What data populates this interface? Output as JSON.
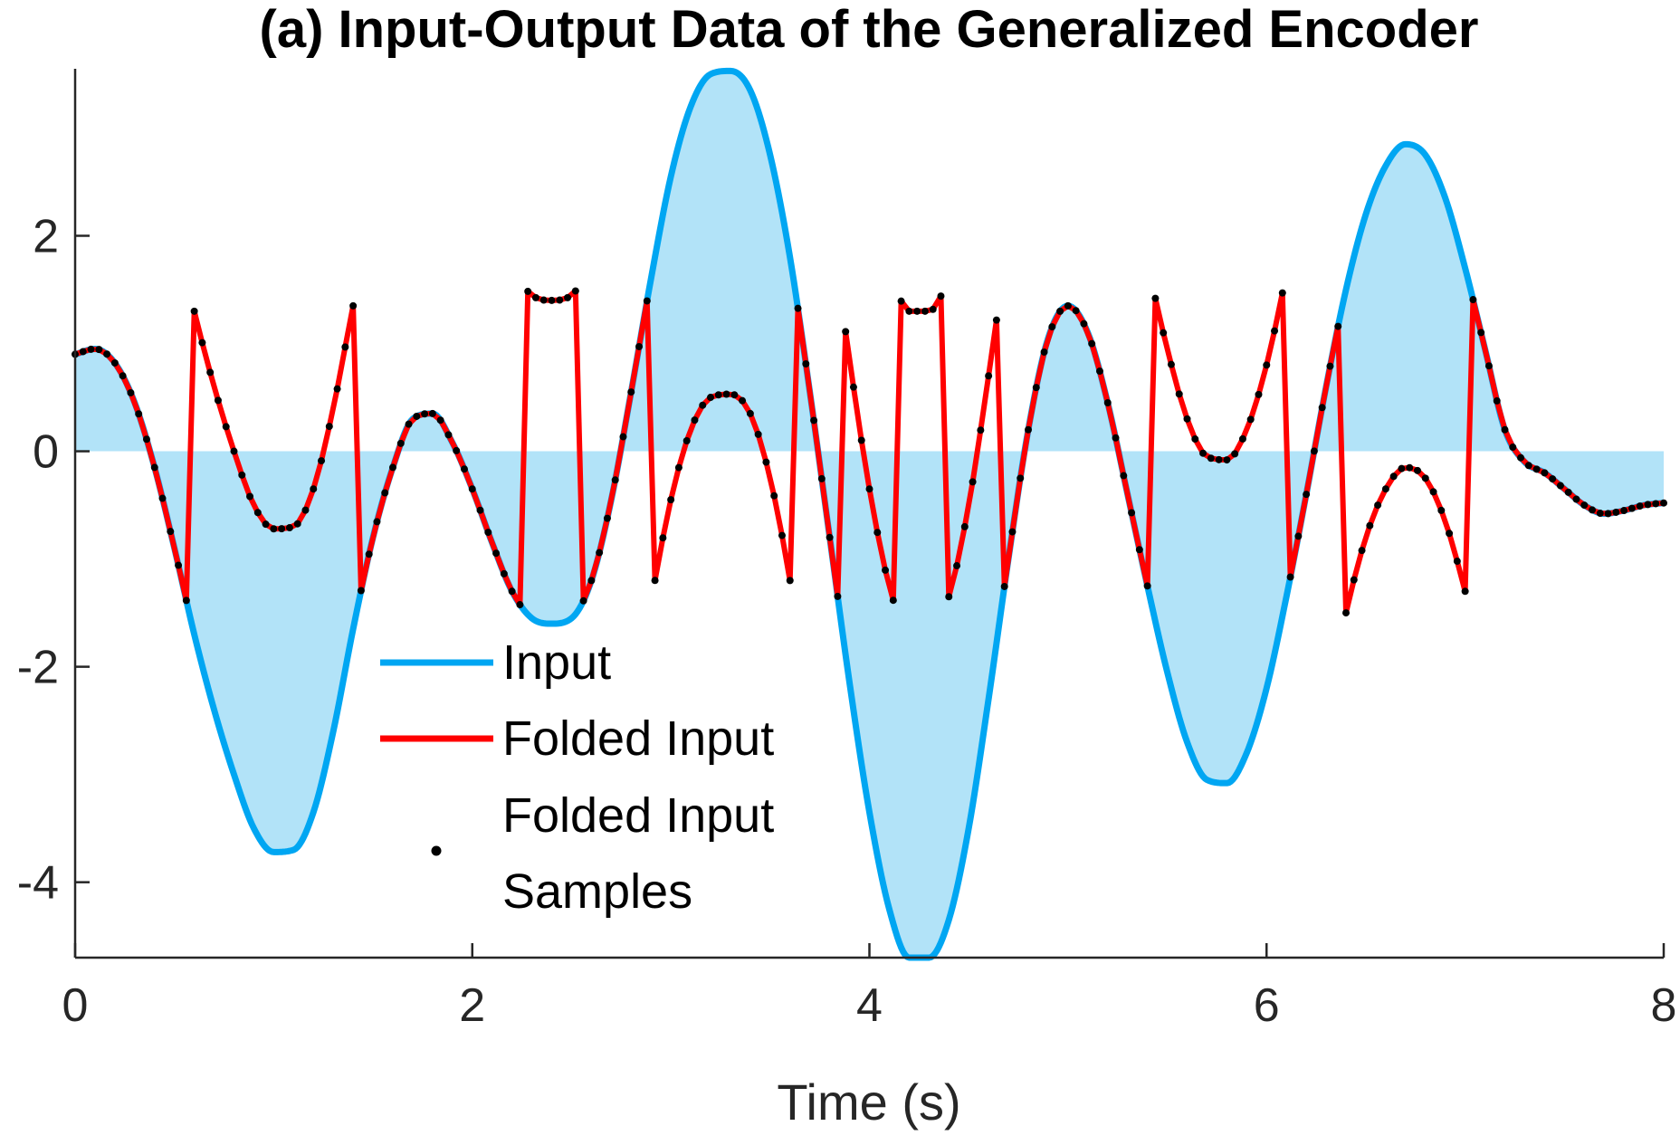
{
  "chart_data": {
    "type": "line",
    "title": "(a) Input-Output Data of the Generalized Encoder",
    "xlabel": "Time (s)",
    "ylabel": "",
    "xlim": [
      0,
      8
    ],
    "ylim": [
      -4.7,
      3.55
    ],
    "xticks": [
      0,
      2,
      4,
      6,
      8
    ],
    "xtick_labels": [
      "0",
      "2",
      "4",
      "6",
      "8"
    ],
    "yticks": [
      2,
      0,
      -2,
      -4
    ],
    "ytick_labels": [
      "2",
      "0",
      "-2",
      "-4"
    ],
    "fold_threshold": 1.5,
    "sample_period": 0.04,
    "legend_position": "center-left",
    "grid": false,
    "colors": {
      "input": "#00A6F2",
      "input_fill": "#B2E3F8",
      "folded": "#FF0000",
      "samples": "#000000",
      "axis": "#262626"
    },
    "series": [
      {
        "name": "Input",
        "style": "line",
        "x": [
          0,
          0.1,
          0.2,
          0.3,
          0.4,
          0.5,
          0.6,
          0.7,
          0.8,
          0.9,
          1.0,
          1.1,
          1.2,
          1.3,
          1.4,
          1.5,
          1.6,
          1.7,
          1.8,
          1.9,
          2.0,
          2.1,
          2.2,
          2.3,
          2.4,
          2.5,
          2.6,
          2.7,
          2.8,
          2.9,
          3.0,
          3.1,
          3.2,
          3.3,
          3.4,
          3.5,
          3.6,
          3.7,
          3.8,
          3.9,
          4.0,
          4.1,
          4.2,
          4.3,
          4.4,
          4.5,
          4.6,
          4.7,
          4.8,
          4.9,
          5.0,
          5.1,
          5.2,
          5.3,
          5.4,
          5.5,
          5.6,
          5.7,
          5.8,
          5.9,
          6.0,
          6.1,
          6.2,
          6.3,
          6.4,
          6.5,
          6.6,
          6.7,
          6.8,
          6.9,
          7.0,
          7.1,
          7.2,
          7.3,
          7.4,
          7.5,
          7.6,
          7.7,
          7.8,
          7.9,
          8.0
        ],
        "y": [
          0.9,
          0.95,
          0.82,
          0.45,
          -0.15,
          -0.9,
          -1.7,
          -2.4,
          -3.0,
          -3.5,
          -3.72,
          -3.7,
          -3.35,
          -2.6,
          -1.65,
          -0.8,
          -0.15,
          0.3,
          0.35,
          0.08,
          -0.35,
          -0.85,
          -1.3,
          -1.55,
          -1.6,
          -1.55,
          -1.2,
          -0.45,
          0.55,
          1.6,
          2.55,
          3.2,
          3.5,
          3.53,
          3.35,
          2.75,
          1.8,
          0.55,
          -0.8,
          -2.15,
          -3.35,
          -4.25,
          -4.7,
          -4.7,
          -4.35,
          -3.5,
          -2.3,
          -1.0,
          0.2,
          1.05,
          1.35,
          1.1,
          0.45,
          -0.4,
          -1.25,
          -2.05,
          -2.7,
          -3.05,
          -3.08,
          -2.8,
          -2.2,
          -1.35,
          -0.4,
          0.6,
          1.5,
          2.2,
          2.65,
          2.85,
          2.75,
          2.35,
          1.7,
          0.95,
          0.2,
          -0.1,
          -0.2,
          -0.35,
          -0.5,
          -0.58,
          -0.55,
          -0.5,
          -0.48
        ]
      },
      {
        "name": "Folded Input",
        "style": "line"
      },
      {
        "name": "Folded Input Samples",
        "style": "markers"
      }
    ],
    "legend": [
      "Input",
      "Folded Input",
      "Folded Input Samples"
    ]
  }
}
